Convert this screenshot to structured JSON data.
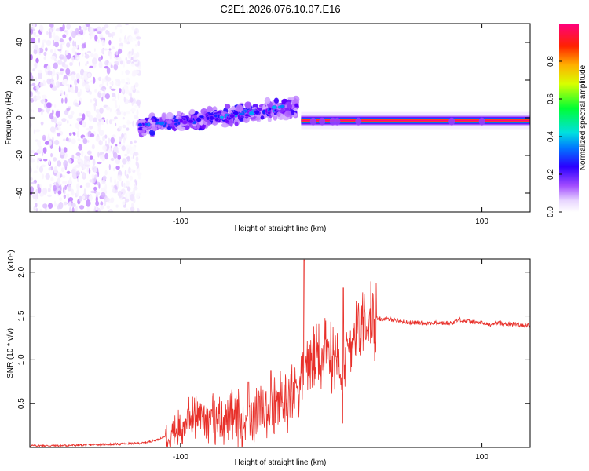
{
  "title": "C2E1.2026.076.10.07.E16",
  "colors": {
    "snr_line": "#e8302a",
    "cmap": [
      "#ffffff",
      "#e8d6ff",
      "#b56cff",
      "#6a00ff",
      "#1c00ff",
      "#0088ff",
      "#00e5e5",
      "#00ff33",
      "#ffff00",
      "#ff9900",
      "#ff0000",
      "#ff0088"
    ]
  },
  "chart_data": [
    {
      "type": "heatmap",
      "title": "C2E1.2026.076.10.07.E16",
      "xlabel": "Height of straight line (km)",
      "ylabel": "Frequency (Hz)",
      "xlim": [
        -200,
        132
      ],
      "ylim": [
        -50,
        50
      ],
      "xticks": [
        {
          "v": -100,
          "label": "-100"
        },
        {
          "v": 100,
          "label": "100"
        }
      ],
      "yticks": [
        {
          "v": 40,
          "label": "40"
        },
        {
          "v": 20,
          "label": "20"
        },
        {
          "v": 0,
          "label": "0"
        },
        {
          "v": -20,
          "label": "-20"
        },
        {
          "v": -40,
          "label": "-40"
        }
      ],
      "colorbar": {
        "label": "Normalized spectral amplitude",
        "range": [
          0,
          1
        ],
        "ticks": [
          {
            "v": 0.0,
            "label": "0.0"
          },
          {
            "v": 0.2,
            "label": "0.2"
          },
          {
            "v": 0.4,
            "label": "0.4"
          },
          {
            "v": 0.6,
            "label": "0.6"
          },
          {
            "v": 0.8,
            "label": "0.8"
          }
        ]
      },
      "regions": [
        {
          "name": "noise",
          "x": [
            -200,
            -133
          ],
          "freq": [
            -50,
            50
          ],
          "amplitude": [
            0.02,
            0.18
          ]
        },
        {
          "name": "scattered-echo",
          "x": [
            -128,
            -22
          ],
          "freq_center": [
            -5,
            6
          ],
          "spread": 4,
          "amplitude": [
            0.15,
            0.5
          ]
        },
        {
          "name": "carrier",
          "x": [
            -20,
            132
          ],
          "freq": -1.5,
          "amplitude": 1.0
        }
      ]
    },
    {
      "type": "line",
      "xlabel": "Height of straight line (km)",
      "ylabel": "SNR (10 * v/v)",
      "yscale_label": "(x10⁴)",
      "xlim": [
        -200,
        132
      ],
      "ylim": [
        0,
        2.15
      ],
      "xticks": [
        {
          "v": -100,
          "label": "-100"
        },
        {
          "v": 100,
          "label": "100"
        }
      ],
      "yticks": [
        {
          "v": 0.5,
          "label": "0.5"
        },
        {
          "v": 1.0,
          "label": "1.0"
        },
        {
          "v": 1.5,
          "label": "1.5"
        },
        {
          "v": 2.0,
          "label": "2.0"
        }
      ],
      "series": [
        {
          "name": "SNR",
          "x": [
            -200,
            -180,
            -160,
            -140,
            -125,
            -115,
            -108,
            -100,
            -95,
            -90,
            -85,
            -80,
            -75,
            -70,
            -60,
            -50,
            -40,
            -35,
            -30,
            -25,
            -20,
            -18,
            -15,
            -12,
            -8,
            -5,
            0,
            5,
            8,
            10,
            15,
            20,
            25,
            30,
            40,
            50,
            60,
            70,
            80,
            85,
            90,
            95,
            100,
            105,
            110,
            120,
            132
          ],
          "y": [
            0.02,
            0.02,
            0.03,
            0.04,
            0.05,
            0.09,
            0.15,
            0.22,
            0.32,
            0.38,
            0.36,
            0.34,
            0.33,
            0.32,
            0.33,
            0.36,
            0.42,
            0.5,
            0.56,
            0.66,
            0.82,
            0.95,
            1.0,
            0.98,
            1.02,
            1.05,
            1.08,
            1.12,
            0.55,
            1.08,
            1.3,
            1.44,
            1.47,
            1.47,
            1.46,
            1.43,
            1.42,
            1.42,
            1.42,
            1.46,
            1.44,
            1.43,
            1.42,
            1.4,
            1.42,
            1.41,
            1.39
          ]
        }
      ],
      "spikes": [
        {
          "x": -18,
          "y": 2.14
        },
        {
          "x": 8,
          "y": 1.82
        },
        {
          "x": -55,
          "y": 0.75
        },
        {
          "x": -40,
          "y": 0.88
        }
      ]
    }
  ]
}
